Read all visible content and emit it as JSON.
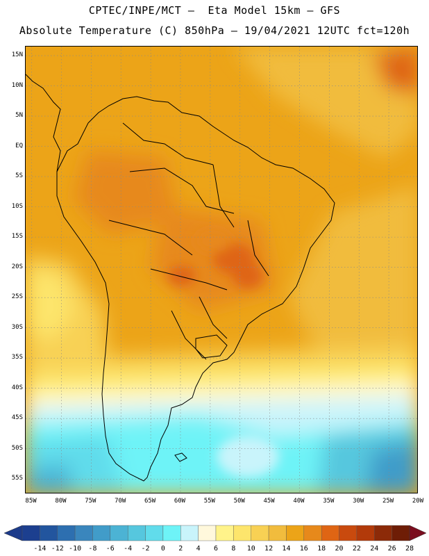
{
  "header": {
    "title_line1": "CPTEC/INPE/MCT –  Eta Model 15km – GFS",
    "title_line2": "Absolute Temperature (C) 850hPa – 19/04/2021 12UTC fct=120h"
  },
  "map": {
    "lat_labels": [
      "15N",
      "10N",
      "5N",
      "EQ",
      "5S",
      "10S",
      "15S",
      "20S",
      "25S",
      "30S",
      "35S",
      "40S",
      "45S",
      "50S",
      "55S"
    ],
    "lon_labels": [
      "85W",
      "80W",
      "75W",
      "70W",
      "65W",
      "60W",
      "55W",
      "50W",
      "45W",
      "40W",
      "35W",
      "30W",
      "25W",
      "20W"
    ],
    "lat_range": [
      -57.5,
      16.5
    ],
    "lon_range": [
      -86,
      -20
    ]
  },
  "colorbar": {
    "labels": [
      "-14",
      "-12",
      "-10",
      "-8",
      "-6",
      "-4",
      "-2",
      "0",
      "2",
      "4",
      "6",
      "8",
      "10",
      "12",
      "14",
      "16",
      "18",
      "20",
      "22",
      "24",
      "26",
      "28"
    ],
    "colors": [
      "#1c3f8f",
      "#22559e",
      "#2d6fb0",
      "#3a86bd",
      "#419cc9",
      "#4cb3d4",
      "#56c7de",
      "#61dceb",
      "#6ef3f7",
      "#c9f4fb",
      "#fff8dc",
      "#fff38a",
      "#fde56c",
      "#f8d154",
      "#f1bc3d",
      "#eca418",
      "#e7891b",
      "#df6514",
      "#c94a0e",
      "#b23a0a",
      "#8c2a08",
      "#6e1d06"
    ],
    "arrow_left": "#1c3b8a",
    "arrow_right": "#7b0d1e"
  }
}
